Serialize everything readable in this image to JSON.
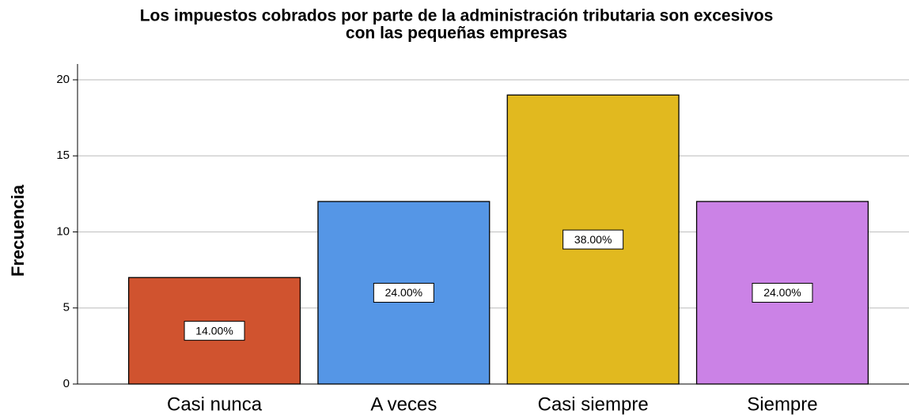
{
  "chart_data": {
    "type": "bar",
    "title_lines": [
      "Los impuestos cobrados por parte de la administración tributaria son excesivos",
      "con las pequeñas empresas"
    ],
    "y_label": "Frecuencia",
    "categories": [
      "Casi nunca",
      "A veces",
      "Casi siempre",
      "Siempre"
    ],
    "values": [
      7,
      12,
      19,
      12
    ],
    "colors": [
      "#d0532f",
      "#5596e6",
      "#e1b91f",
      "#cb82e6"
    ],
    "percentages": {
      "values": [
        14,
        24,
        38,
        24
      ],
      "value_labels": [
        "14.00%",
        "24.00%",
        "38.00%",
        "24.00%"
      ]
    },
    "ylim": [
      0,
      20
    ],
    "yticks": [
      0,
      5,
      10,
      15,
      20
    ],
    "grid": true
  }
}
